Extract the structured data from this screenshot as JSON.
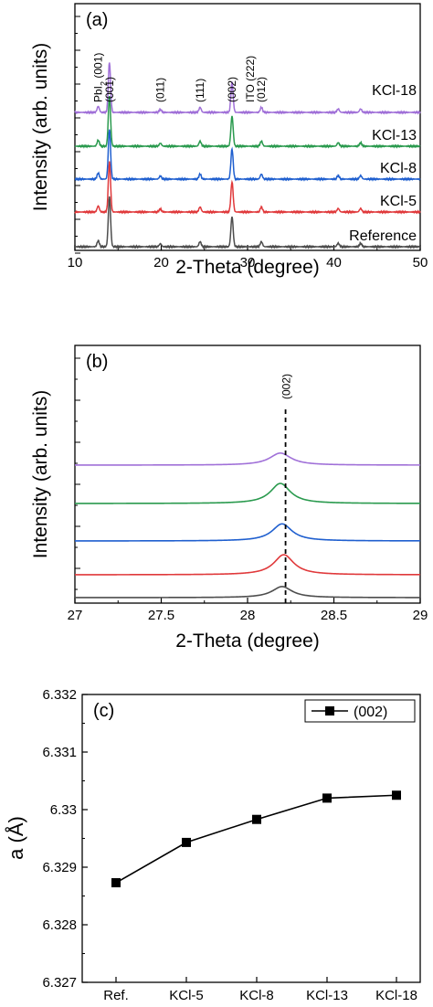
{
  "colors": {
    "Reference": "#4d4d4d",
    "KCl-5": "#e0393b",
    "KCl-8": "#1f5fcf",
    "KCl-13": "#2a9a4e",
    "KCl-18": "#a070d8",
    "pbi2": "#f0a020",
    "ito": "#2a8a2a"
  },
  "chart_data": [
    {
      "panel": "(a)",
      "type": "line",
      "xlabel": "2-Theta (degree)",
      "ylabel": "Intensity (arb. units)",
      "xlim": [
        10,
        50
      ],
      "x_ticks": [
        "10",
        "20",
        "30",
        "40",
        "50"
      ],
      "series": [
        {
          "name": "Reference",
          "peaks": [
            [
              12.7,
              0.12
            ],
            [
              14.0,
              1.0
            ],
            [
              19.9,
              0.06
            ],
            [
              24.5,
              0.1
            ],
            [
              28.2,
              0.6
            ],
            [
              31.6,
              0.1
            ],
            [
              40.5,
              0.07
            ],
            [
              43.1,
              0.07
            ]
          ]
        },
        {
          "name": "KCl-5",
          "peaks": [
            [
              12.7,
              0.12
            ],
            [
              14.0,
              1.0
            ],
            [
              19.9,
              0.06
            ],
            [
              24.5,
              0.1
            ],
            [
              28.2,
              0.6
            ],
            [
              31.6,
              0.1
            ],
            [
              40.5,
              0.07
            ],
            [
              43.1,
              0.07
            ]
          ]
        },
        {
          "name": "KCl-8",
          "peaks": [
            [
              12.7,
              0.12
            ],
            [
              14.0,
              1.0
            ],
            [
              19.9,
              0.06
            ],
            [
              24.5,
              0.1
            ],
            [
              28.2,
              0.6
            ],
            [
              31.6,
              0.1
            ],
            [
              40.5,
              0.07
            ],
            [
              43.1,
              0.07
            ]
          ]
        },
        {
          "name": "KCl-13",
          "peaks": [
            [
              12.7,
              0.12
            ],
            [
              14.0,
              1.0
            ],
            [
              19.9,
              0.06
            ],
            [
              24.5,
              0.1
            ],
            [
              28.2,
              0.6
            ],
            [
              31.6,
              0.1
            ],
            [
              40.5,
              0.07
            ],
            [
              43.1,
              0.07
            ]
          ]
        },
        {
          "name": "KCl-18",
          "peaks": [
            [
              12.7,
              0.12
            ],
            [
              14.0,
              1.0
            ],
            [
              19.9,
              0.06
            ],
            [
              24.5,
              0.1
            ],
            [
              28.2,
              0.6
            ],
            [
              31.6,
              0.1
            ],
            [
              40.5,
              0.07
            ],
            [
              43.1,
              0.07
            ]
          ]
        }
      ],
      "annotations": [
        {
          "text": "PbI",
          "sub": "2",
          "suffix": " (001)",
          "x": 12.7,
          "color": "pbi2"
        },
        {
          "text": "(001)",
          "x": 14.0
        },
        {
          "text": "(011)",
          "x": 19.9
        },
        {
          "text": "(111)",
          "x": 24.5
        },
        {
          "text": "(002)",
          "x": 28.2
        },
        {
          "text": "ITO (222)",
          "x": 30.3,
          "color": "ito"
        },
        {
          "text": "(012)",
          "x": 31.6
        }
      ]
    },
    {
      "panel": "(b)",
      "type": "line",
      "xlabel": "2-Theta (degree)",
      "ylabel": "Intensity (arb. units)",
      "xlim": [
        27,
        29
      ],
      "x_ticks": [
        "27",
        "27.5",
        "28",
        "28.5",
        "29"
      ],
      "reference_line": {
        "x": 28.22,
        "label": "(002)"
      },
      "series": [
        {
          "name": "Reference",
          "center": 28.2,
          "height": 0.55,
          "width": 0.07
        },
        {
          "name": "KCl-5",
          "center": 28.21,
          "height": 1.0,
          "width": 0.07
        },
        {
          "name": "KCl-8",
          "center": 28.2,
          "height": 0.85,
          "width": 0.07
        },
        {
          "name": "KCl-13",
          "center": 28.19,
          "height": 1.0,
          "width": 0.07
        },
        {
          "name": "KCl-18",
          "center": 28.19,
          "height": 0.6,
          "width": 0.075
        }
      ]
    },
    {
      "panel": "(c)",
      "type": "line",
      "xlabel": "",
      "ylabel": "a (Å)",
      "categories": [
        "Ref.",
        "KCl-5",
        "KCl-8",
        "KCl-13",
        "KCl-18"
      ],
      "ylim": [
        6.327,
        6.332
      ],
      "y_ticks": [
        "6.327",
        "6.328",
        "6.329",
        "6.33",
        "6.331",
        "6.332"
      ],
      "legend": "top-right",
      "series": [
        {
          "name": "(002)",
          "values": [
            6.32873,
            6.32943,
            6.32983,
            6.3302,
            6.33025
          ]
        }
      ]
    }
  ]
}
